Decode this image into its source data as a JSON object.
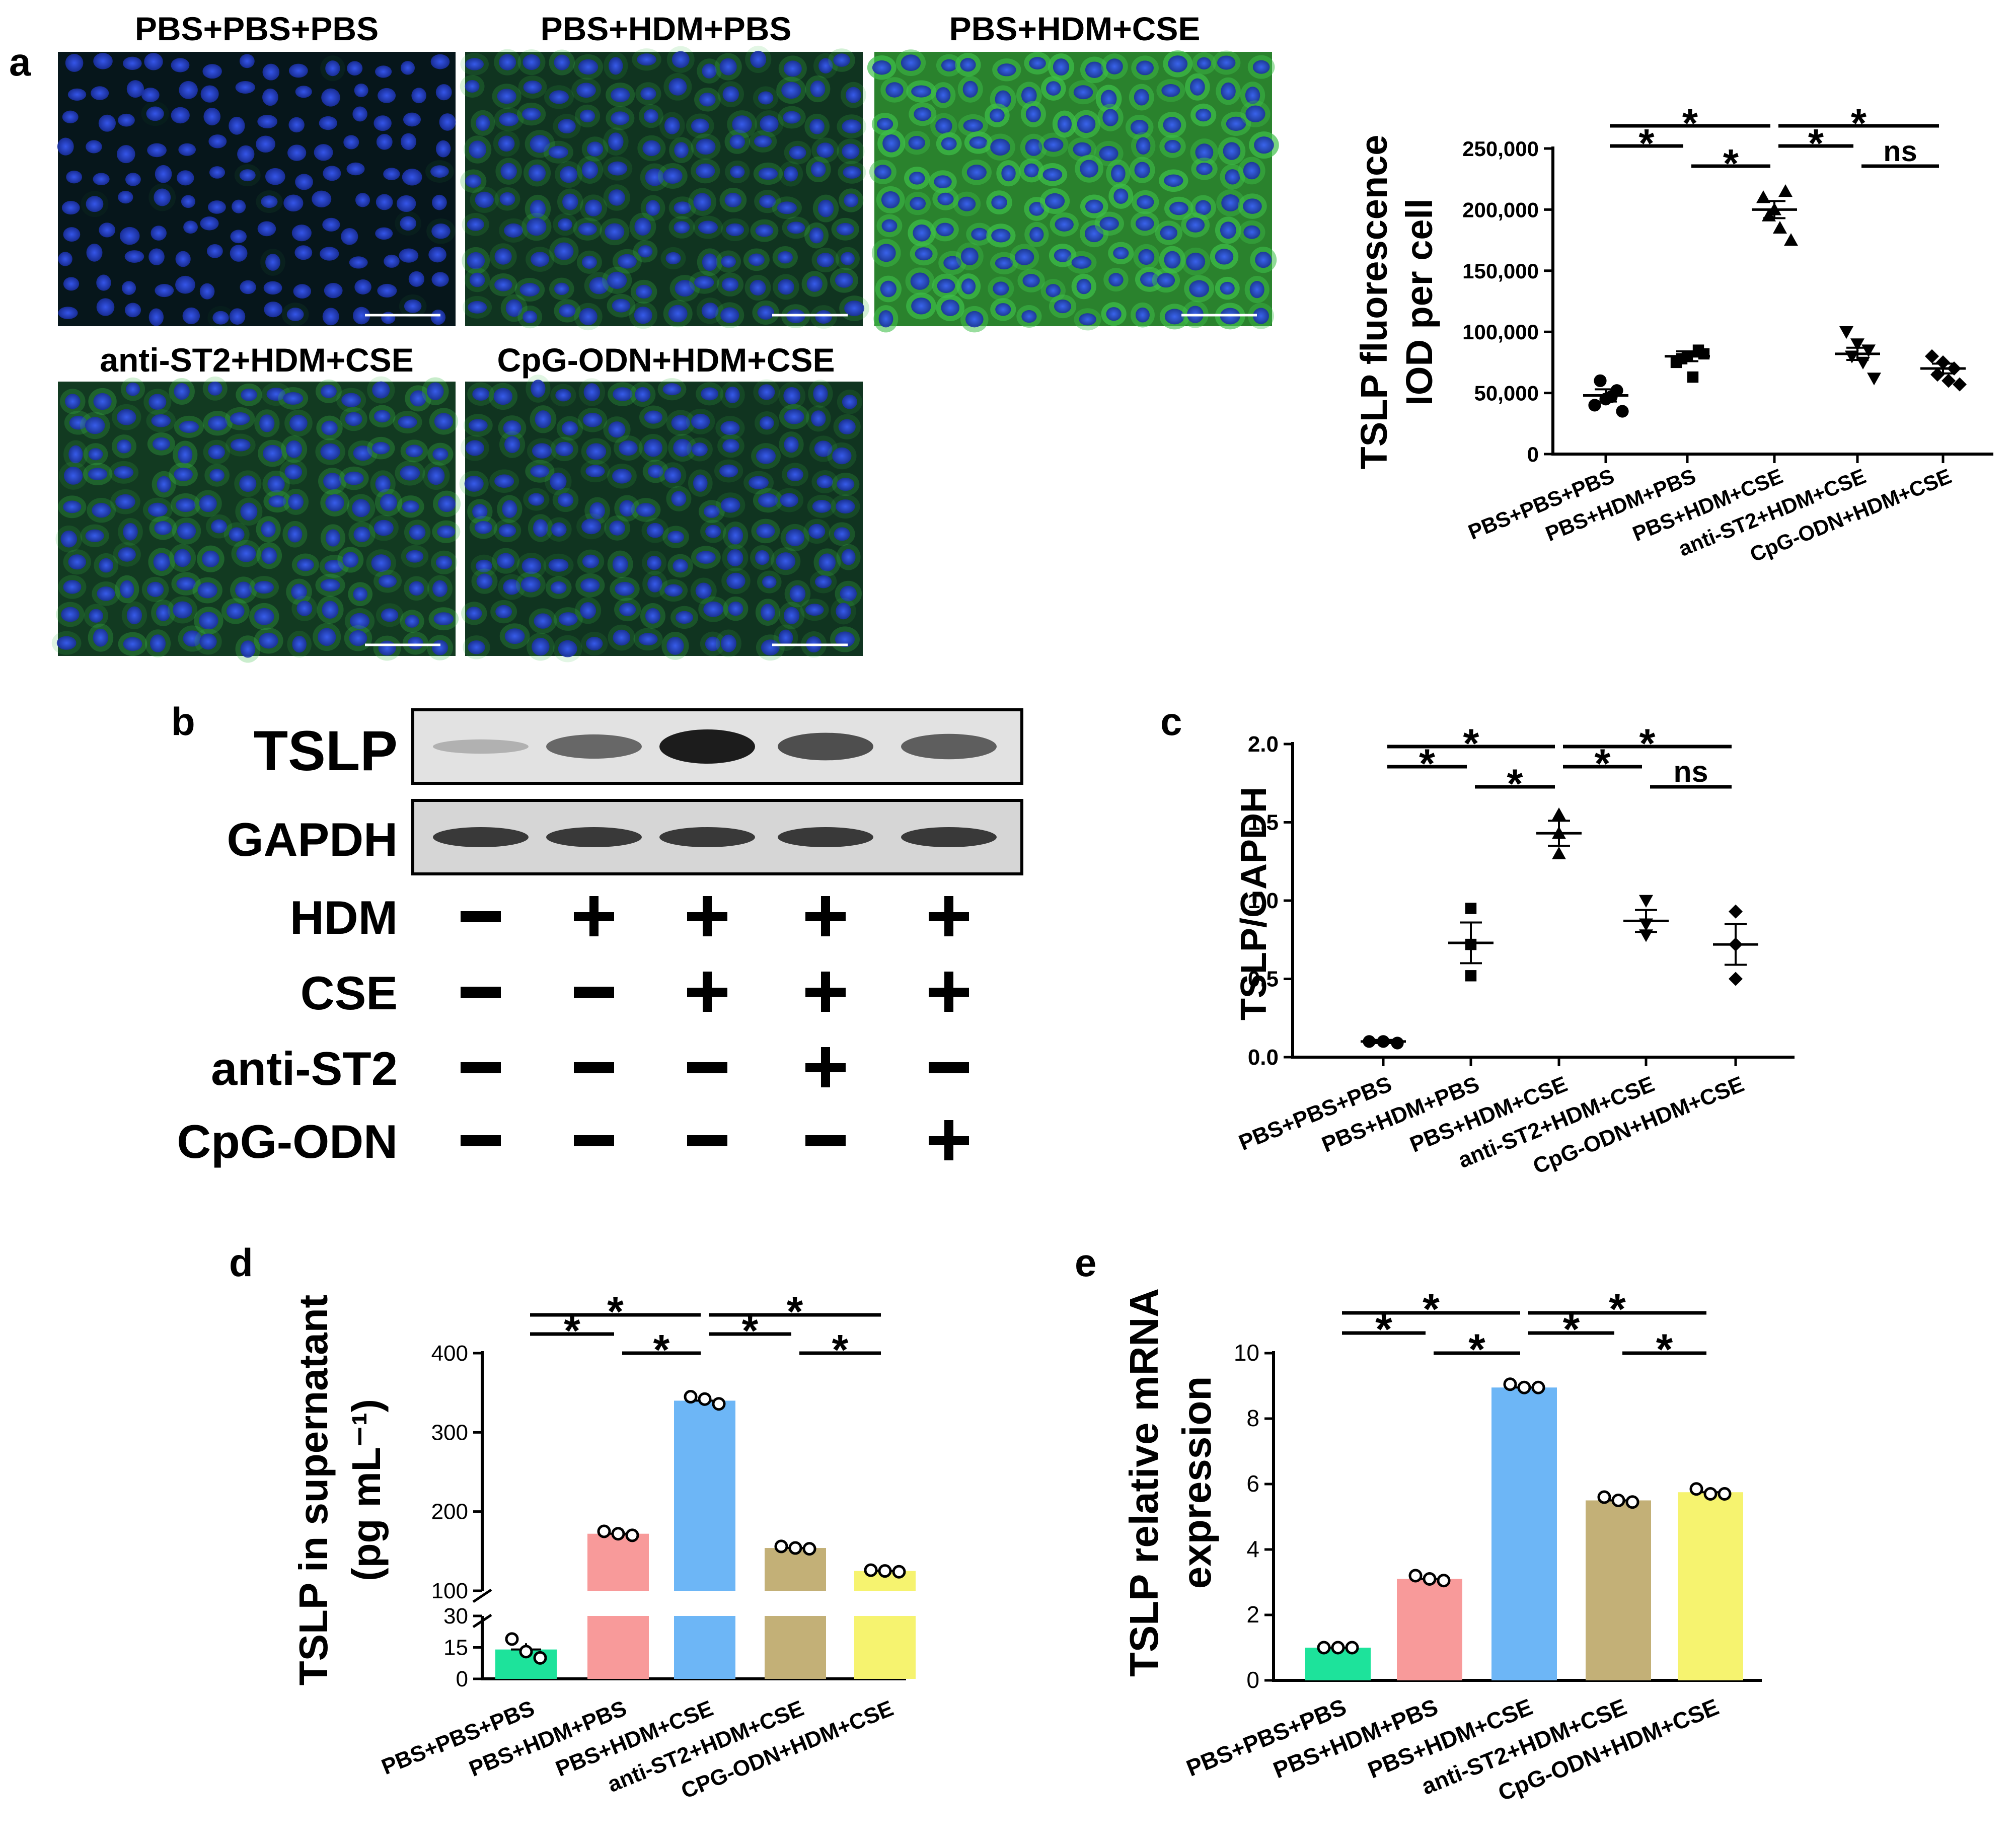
{
  "panel_labels": {
    "a": "a",
    "b": "b",
    "c": "c",
    "d": "d",
    "e": "e"
  },
  "groups": [
    "PBS+PBS+PBS",
    "PBS+HDM+PBS",
    "PBS+HDM+CSE",
    "anti-ST2+HDM+CSE",
    "CpG-ODN+HDM+CSE"
  ],
  "groups_d": [
    "PBS+PBS+PBS",
    "PBS+HDM+PBS",
    "PBS+HDM+CSE",
    "anti-ST2+HDM+CSE",
    "CPG-ODN+HDM+CSE"
  ],
  "micrographs": [
    {
      "title": "PBS+PBS+PBS",
      "green_intensity": 0.1
    },
    {
      "title": "PBS+HDM+PBS",
      "green_intensity": 0.35
    },
    {
      "title": "PBS+HDM+CSE",
      "green_intensity": 1.0
    },
    {
      "title": "anti-ST2+HDM+CSE",
      "green_intensity": 0.4
    },
    {
      "title": "CpG-ODN+HDM+CSE",
      "green_intensity": 0.35
    }
  ],
  "colors": {
    "nuclei_blue": "#1f3fbf",
    "cytoplasm_green": "#3fc04a",
    "bar_colors": [
      "#1de39b",
      "#f89a9a",
      "#6db6f6",
      "#c3b077",
      "#f6f36f"
    ]
  },
  "blot": {
    "rows": [
      "TSLP",
      "GAPDH"
    ],
    "treatments": [
      {
        "label": "HDM",
        "signs": [
          "−",
          "+",
          "+",
          "+",
          "+"
        ]
      },
      {
        "label": "CSE",
        "signs": [
          "−",
          "−",
          "+",
          "+",
          "+"
        ]
      },
      {
        "label": "anti-ST2",
        "signs": [
          "−",
          "−",
          "−",
          "+",
          "−"
        ]
      },
      {
        "label": "CpG-ODN",
        "signs": [
          "−",
          "−",
          "−",
          "−",
          "+"
        ]
      }
    ],
    "tslp_band_intensity": [
      0.1,
      0.55,
      1.0,
      0.7,
      0.6
    ],
    "gapdh_band_intensity": [
      0.8,
      0.8,
      0.8,
      0.8,
      0.8
    ]
  },
  "chart_data": [
    {
      "panel": "a",
      "type": "scatter",
      "ylabel": "TSLP fluorescence",
      "ylabel2": "IOD per cell",
      "ylim": [
        0,
        250000
      ],
      "yticks": [
        0,
        50000,
        100000,
        150000,
        200000,
        250000
      ],
      "ytick_labels": [
        "0",
        "50,000",
        "100,000",
        "150,000",
        "200,000",
        "250,000"
      ],
      "series": [
        {
          "values": [
            40000,
            45000,
            52000,
            60000,
            47000,
            35000
          ],
          "mean": 48000,
          "sem": 5000,
          "marker": "circle"
        },
        {
          "values": [
            75000,
            80000,
            85000,
            78000,
            63000,
            82000
          ],
          "mean": 80000,
          "sem": 4000,
          "marker": "square"
        },
        {
          "values": [
            210000,
            200000,
            215000,
            195000,
            185000,
            175000
          ],
          "mean": 200000,
          "sem": 7000,
          "marker": "triangle"
        },
        {
          "values": [
            100000,
            90000,
            85000,
            80000,
            75000,
            62000
          ],
          "mean": 82000,
          "sem": 5000,
          "marker": "triangle-down"
        },
        {
          "values": [
            80000,
            75000,
            70000,
            65000,
            60000,
            57000
          ],
          "mean": 70000,
          "sem": 4000,
          "marker": "diamond"
        }
      ],
      "significance": [
        {
          "from": 1,
          "to": 2,
          "label": "*",
          "level": 1
        },
        {
          "from": 2,
          "to": 3,
          "label": "*",
          "level": 0
        },
        {
          "from": 1,
          "to": 3,
          "label": "*",
          "level": 2
        },
        {
          "from": 3,
          "to": 4,
          "label": "*",
          "level": 1
        },
        {
          "from": 4,
          "to": 5,
          "label": "ns",
          "level": 0
        },
        {
          "from": 3,
          "to": 5,
          "label": "*",
          "level": 2
        }
      ]
    },
    {
      "panel": "c",
      "type": "scatter",
      "ylabel": "TSLP/GAPDH",
      "ylim": [
        0,
        2.0
      ],
      "yticks": [
        0,
        0.5,
        1.0,
        1.5,
        2.0
      ],
      "ytick_labels": [
        "0.0",
        "0.5",
        "1.0",
        "1.5",
        "2.0"
      ],
      "series": [
        {
          "values": [
            0.1,
            0.1,
            0.09
          ],
          "mean": 0.1,
          "sem": 0.01,
          "marker": "circle"
        },
        {
          "values": [
            0.95,
            0.72,
            0.52
          ],
          "mean": 0.73,
          "sem": 0.13,
          "marker": "square"
        },
        {
          "values": [
            1.55,
            1.43,
            1.3
          ],
          "mean": 1.43,
          "sem": 0.08,
          "marker": "triangle"
        },
        {
          "values": [
            1.0,
            0.85,
            0.78
          ],
          "mean": 0.87,
          "sem": 0.07,
          "marker": "triangle-down"
        },
        {
          "values": [
            0.93,
            0.72,
            0.5
          ],
          "mean": 0.72,
          "sem": 0.13,
          "marker": "diamond"
        }
      ],
      "significance": [
        {
          "from": 1,
          "to": 2,
          "label": "*",
          "level": 1
        },
        {
          "from": 2,
          "to": 3,
          "label": "*",
          "level": 0
        },
        {
          "from": 1,
          "to": 3,
          "label": "*",
          "level": 2
        },
        {
          "from": 3,
          "to": 4,
          "label": "*",
          "level": 1
        },
        {
          "from": 4,
          "to": 5,
          "label": "ns",
          "level": 0
        },
        {
          "from": 3,
          "to": 5,
          "label": "*",
          "level": 2
        }
      ]
    },
    {
      "panel": "d",
      "type": "bar",
      "ylabel": "TSLP in supernatant",
      "ylabel2": "(pg mL⁻¹)",
      "axis_break": [
        30,
        100
      ],
      "lower_ylim": [
        0,
        30
      ],
      "upper_ylim": [
        100,
        400
      ],
      "yticks_lower": [
        0,
        15,
        30
      ],
      "yticks_upper": [
        100,
        200,
        300,
        400
      ],
      "ytick_labels_lower": [
        "0",
        "15",
        "30"
      ],
      "ytick_labels_upper": [
        "100",
        "200",
        "300",
        "400"
      ],
      "values": [
        14,
        172,
        340,
        154,
        125
      ],
      "sem": [
        3,
        3,
        3,
        2,
        2
      ],
      "points": [
        [
          19,
          13,
          10
        ],
        [
          175,
          172,
          170
        ],
        [
          345,
          342,
          336
        ],
        [
          156,
          154,
          153
        ],
        [
          126,
          125,
          124
        ]
      ],
      "significance": [
        {
          "from": 1,
          "to": 2,
          "label": "*",
          "level": 1
        },
        {
          "from": 2,
          "to": 3,
          "label": "*",
          "level": 0
        },
        {
          "from": 1,
          "to": 3,
          "label": "*",
          "level": 2
        },
        {
          "from": 3,
          "to": 4,
          "label": "*",
          "level": 1
        },
        {
          "from": 4,
          "to": 5,
          "label": "*",
          "level": 0
        },
        {
          "from": 3,
          "to": 5,
          "label": "*",
          "level": 2
        }
      ]
    },
    {
      "panel": "e",
      "type": "bar",
      "ylabel": "TSLP relative mRNA",
      "ylabel2": "expression",
      "ylim": [
        0,
        10
      ],
      "yticks": [
        0,
        2,
        4,
        6,
        8,
        10
      ],
      "ytick_labels": [
        "0",
        "2",
        "4",
        "6",
        "8",
        "10"
      ],
      "values": [
        1.0,
        3.1,
        8.95,
        5.5,
        5.75
      ],
      "sem": [
        0.02,
        0.08,
        0.05,
        0.07,
        0.08
      ],
      "points": [
        [
          1.0,
          1.0,
          1.0
        ],
        [
          3.2,
          3.1,
          3.05
        ],
        [
          9.05,
          8.95,
          8.95
        ],
        [
          5.6,
          5.5,
          5.45
        ],
        [
          5.85,
          5.7,
          5.7
        ]
      ],
      "significance": [
        {
          "from": 1,
          "to": 2,
          "label": "*",
          "level": 1
        },
        {
          "from": 2,
          "to": 3,
          "label": "*",
          "level": 0
        },
        {
          "from": 1,
          "to": 3,
          "label": "*",
          "level": 2
        },
        {
          "from": 3,
          "to": 4,
          "label": "*",
          "level": 1
        },
        {
          "from": 4,
          "to": 5,
          "label": "*",
          "level": 0
        },
        {
          "from": 3,
          "to": 5,
          "label": "*",
          "level": 2
        }
      ]
    }
  ]
}
